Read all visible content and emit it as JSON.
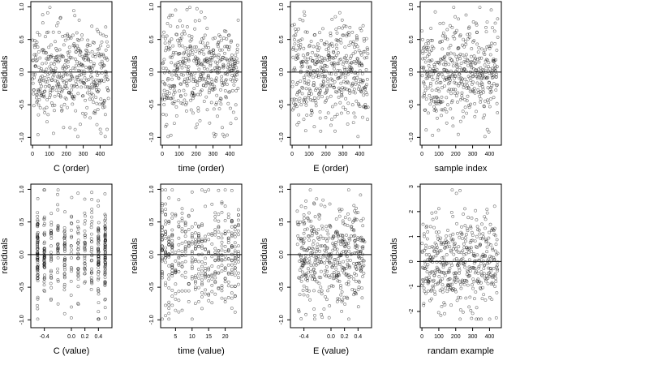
{
  "figure": {
    "panel_names": [
      "C-order",
      "time-order",
      "E-order",
      "sample-index",
      "C-value",
      "time-value",
      "E-value",
      "randam-example"
    ]
  },
  "chart_data": [
    {
      "type": "scatter",
      "xlabel": "C (order)",
      "ylabel": "residuals",
      "x_ticks": [
        0,
        100,
        200,
        300,
        400
      ],
      "x_tick_labels": [
        "0",
        "100",
        "200",
        "300",
        "400"
      ],
      "xlim": [
        -10,
        470
      ],
      "y_ticks": [
        -1.0,
        -0.5,
        0.0,
        0.5,
        1.0
      ],
      "y_tick_labels": [
        "-1.0",
        "-0.5",
        "0.0",
        "0.5",
        "1.0"
      ],
      "ylim": [
        -1.12,
        1.08
      ],
      "hline": 0,
      "point_color": "#000000",
      "seed": 11,
      "n": 450,
      "x_kind": "index",
      "sd": 0.38
    },
    {
      "type": "scatter",
      "xlabel": "time (order)",
      "ylabel": "residuals",
      "x_ticks": [
        0,
        100,
        200,
        300,
        400
      ],
      "x_tick_labels": [
        "0",
        "100",
        "200",
        "300",
        "400"
      ],
      "xlim": [
        -10,
        470
      ],
      "y_ticks": [
        -1.0,
        -0.5,
        0.0,
        0.5,
        1.0
      ],
      "y_tick_labels": [
        "-1.0",
        "-0.5",
        "0.0",
        "0.5",
        "1.0"
      ],
      "ylim": [
        -1.12,
        1.08
      ],
      "hline": 0,
      "point_color": "#000000",
      "seed": 23,
      "n": 450,
      "x_kind": "index",
      "sd": 0.38
    },
    {
      "type": "scatter",
      "xlabel": "E (order)",
      "ylabel": "residuals",
      "x_ticks": [
        0,
        100,
        200,
        300,
        400
      ],
      "x_tick_labels": [
        "0",
        "100",
        "200",
        "300",
        "400"
      ],
      "xlim": [
        -10,
        470
      ],
      "y_ticks": [
        -1.0,
        -0.5,
        0.0,
        0.5,
        1.0
      ],
      "y_tick_labels": [
        "-1.0",
        "-0.5",
        "0.0",
        "0.5",
        "1.0"
      ],
      "ylim": [
        -1.12,
        1.08
      ],
      "hline": 0,
      "point_color": "#000000",
      "seed": 37,
      "n": 450,
      "x_kind": "index",
      "sd": 0.38
    },
    {
      "type": "scatter",
      "xlabel": "sample index",
      "ylabel": "residuals",
      "x_ticks": [
        0,
        100,
        200,
        300,
        400
      ],
      "x_tick_labels": [
        "0",
        "100",
        "200",
        "300",
        "400"
      ],
      "xlim": [
        -10,
        470
      ],
      "y_ticks": [
        -1.0,
        -0.5,
        0.0,
        0.5,
        1.0
      ],
      "y_tick_labels": [
        "-1.0",
        "-0.5",
        "0.0",
        "0.5",
        "1.0"
      ],
      "ylim": [
        -1.12,
        1.08
      ],
      "hline": 0,
      "point_color": "#000000",
      "seed": 41,
      "n": 450,
      "x_kind": "index",
      "sd": 0.38
    },
    {
      "type": "scatter",
      "xlabel": "C (value)",
      "ylabel": "residuals",
      "x_ticks": [
        -0.4,
        0.0,
        0.2,
        0.4
      ],
      "x_tick_labels": [
        "-0.4",
        "0.0",
        "0.2",
        "0.4"
      ],
      "xlim": [
        -0.6,
        0.6
      ],
      "y_ticks": [
        -1.0,
        -0.5,
        0.0,
        0.5,
        1.0
      ],
      "y_tick_labels": [
        "-1.0",
        "-0.5",
        "0.0",
        "0.5",
        "1.0"
      ],
      "ylim": [
        -1.12,
        1.08
      ],
      "hline": 0,
      "point_color": "#000000",
      "seed": 53,
      "n": 450,
      "x_kind": "discrete",
      "x_levels": [
        -0.5,
        -0.4,
        -0.3,
        -0.2,
        -0.1,
        0.0,
        0.1,
        0.2,
        0.3,
        0.4,
        0.5
      ],
      "x_weights": [
        3,
        2,
        1,
        1,
        1,
        1,
        1,
        1,
        1,
        2,
        3
      ],
      "sd": 0.38
    },
    {
      "type": "scatter",
      "xlabel": "time (value)",
      "ylabel": "residuals",
      "x_ticks": [
        5,
        10,
        15,
        20
      ],
      "x_tick_labels": [
        "5",
        "10",
        "15",
        "20"
      ],
      "xlim": [
        0.5,
        25
      ],
      "y_ticks": [
        -1.0,
        -0.5,
        0.0,
        0.5,
        1.0
      ],
      "y_tick_labels": [
        "-1.0",
        "-0.5",
        "0.0",
        "0.5",
        "1.0"
      ],
      "ylim": [
        -1.12,
        1.08
      ],
      "hline": 0,
      "point_color": "#000000",
      "seed": 67,
      "n": 450,
      "x_kind": "integer",
      "x_range": [
        1,
        24
      ],
      "sd": 0.38
    },
    {
      "type": "scatter",
      "xlabel": "E (value)",
      "ylabel": "residuals",
      "x_ticks": [
        -0.4,
        0.0,
        0.2,
        0.4
      ],
      "x_tick_labels": [
        "-0.4",
        "0.0",
        "0.2",
        "0.4"
      ],
      "xlim": [
        -0.6,
        0.6
      ],
      "y_ticks": [
        -1.0,
        -0.5,
        0.0,
        0.5,
        1.0
      ],
      "y_tick_labels": [
        "-1.0",
        "-0.5",
        "0.0",
        "0.5",
        "1.0"
      ],
      "ylim": [
        -1.12,
        1.08
      ],
      "hline": 0,
      "point_color": "#000000",
      "seed": 71,
      "n": 450,
      "x_kind": "continuous",
      "x_range": [
        -0.5,
        0.5
      ],
      "sd": 0.38
    },
    {
      "type": "scatter",
      "xlabel": "randam example",
      "ylabel": "residuals",
      "x_ticks": [
        0,
        100,
        200,
        300,
        400
      ],
      "x_tick_labels": [
        "0",
        "100",
        "200",
        "300",
        "400"
      ],
      "xlim": [
        -10,
        470
      ],
      "y_ticks": [
        -2,
        -1,
        0,
        1,
        2,
        3
      ],
      "y_tick_labels": [
        "-2",
        "-1",
        "0",
        "1",
        "2",
        "3"
      ],
      "ylim": [
        -2.65,
        3.1
      ],
      "hline": 0,
      "point_color": "#000000",
      "seed": 89,
      "n": 450,
      "x_kind": "index",
      "sd": 1.0
    }
  ]
}
